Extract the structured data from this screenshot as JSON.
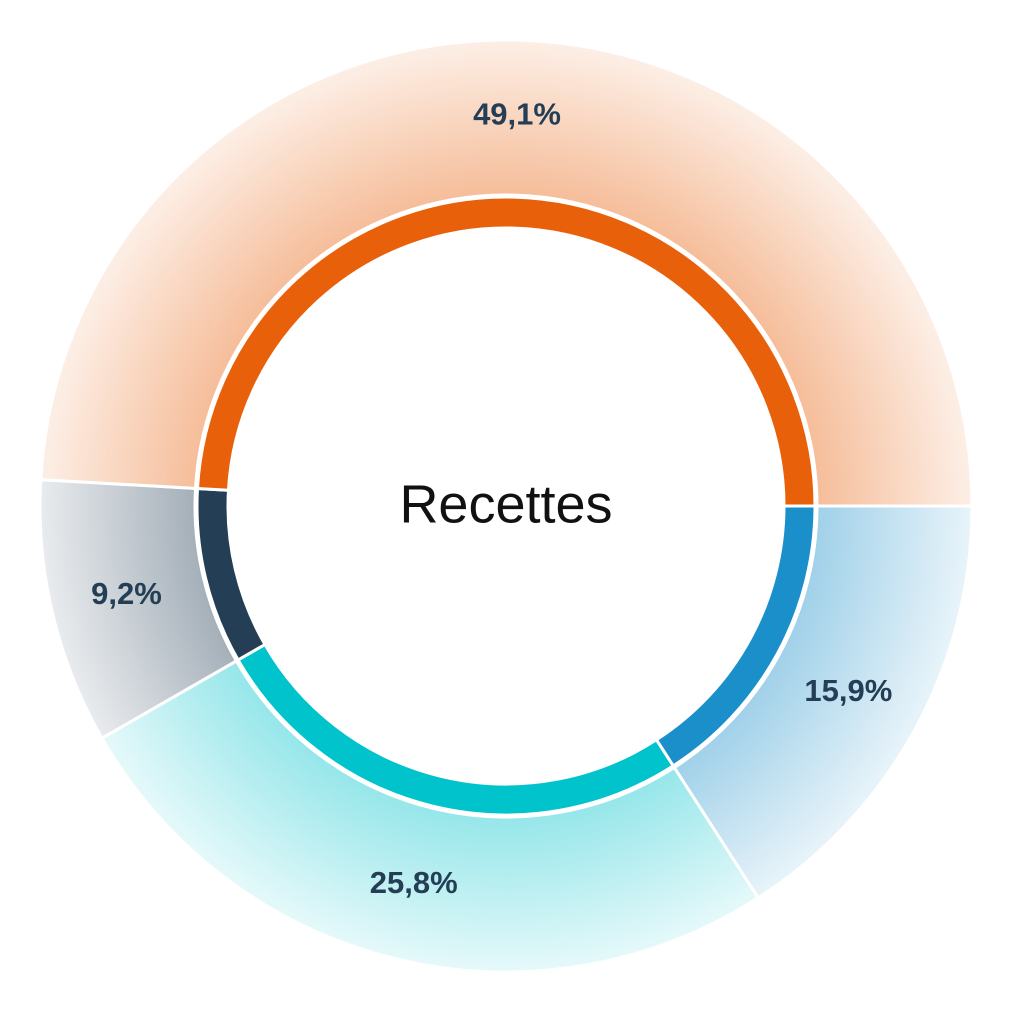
{
  "chart_data": {
    "type": "donut",
    "title": "Recettes",
    "values": [
      15.9,
      25.8,
      9.2,
      49.1
    ],
    "value_labels": [
      "15,9%",
      "25,8%",
      "9,2%",
      "49,1%"
    ],
    "colors": [
      "#1a8fca",
      "#00c3cc",
      "#243e55",
      "#e8600a"
    ]
  }
}
